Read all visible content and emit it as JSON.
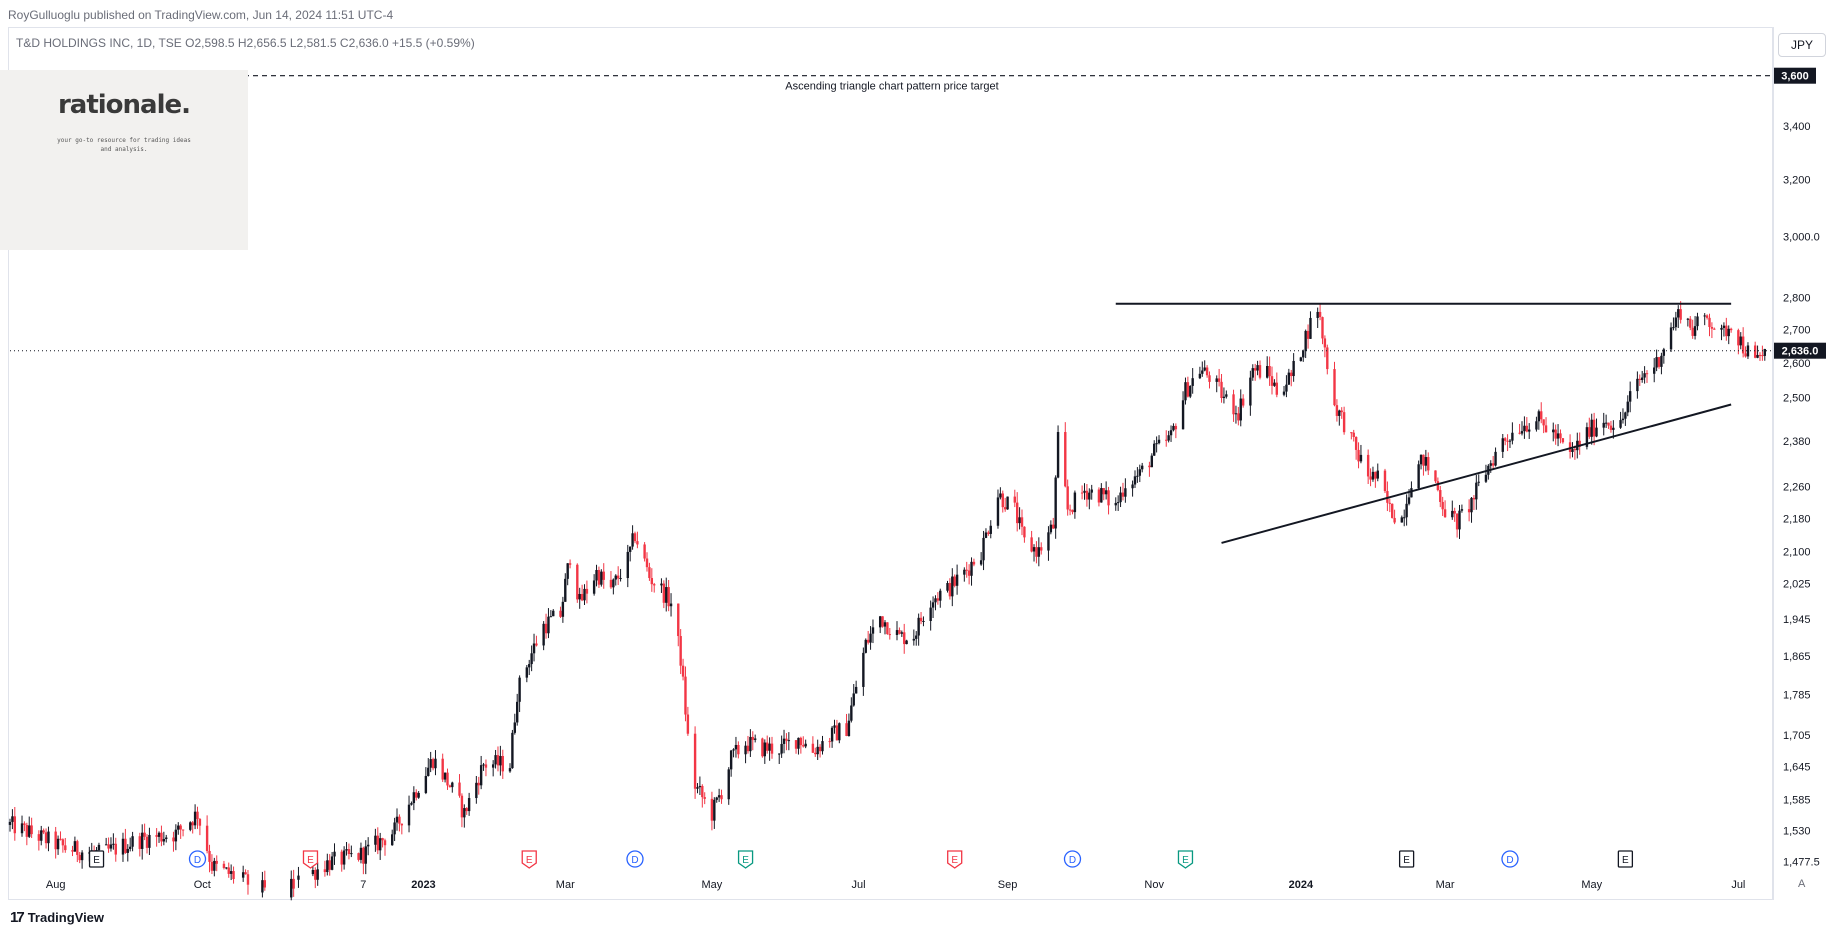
{
  "header": {
    "publisher": "RoyGulluoglu published on TradingView.com, Jun 14, 2024 11:51 UTC-4",
    "symbol_line": "T&D HOLDINGS INC, 1D, TSE  O2,598.5  H2,656.5  L2,581.5  C2,636.0  +15.5 (+0.59%)"
  },
  "currency": "JPY",
  "logo": {
    "title": "rationale.",
    "tagline": "your go-to resource for trading ideas and analysis."
  },
  "footer": {
    "brand": "TradingView",
    "brand_icon": "tradingview-logo-icon",
    "auto_label": "A"
  },
  "colors": {
    "up": "#131722",
    "down": "#f23645",
    "line": "#131722",
    "grid": "#e0e3eb"
  },
  "chart_data": {
    "type": "candlestick",
    "symbol": "T&D HOLDINGS INC",
    "interval": "1D",
    "exchange": "TSE",
    "currency": "JPY",
    "ohlc": {
      "open": 2598.5,
      "high": 2656.5,
      "low": 2581.5,
      "close": 2636.0,
      "change": 15.5,
      "change_pct": "+0.59%"
    },
    "y_scale": "log",
    "ylim": [
      1460,
      3800
    ],
    "xlim": [
      "2022-07-13",
      "2024-07-15"
    ],
    "y_ticks": [
      "3,600",
      "3,400",
      "3,200",
      "3,000.0",
      "2,800",
      "2,700",
      "2,600",
      "2,500",
      "2,380",
      "2,260",
      "2,180",
      "2,100",
      "2,025",
      "1,945",
      "1,865",
      "1,785",
      "1,705",
      "1,645",
      "1,585",
      "1,530",
      "1,477.5"
    ],
    "y_tick_values": [
      3600,
      3400,
      3200,
      3000,
      2800,
      2700,
      2600,
      2500,
      2380,
      2260,
      2180,
      2100,
      2025,
      1945,
      1865,
      1785,
      1705,
      1645,
      1585,
      1530,
      1477.5
    ],
    "x_ticks": [
      {
        "label": "Aug",
        "date": "2022-08-01",
        "bold": false
      },
      {
        "label": "Oct",
        "date": "2022-10-01",
        "bold": false
      },
      {
        "label": "7",
        "date": "2022-12-07",
        "bold": false
      },
      {
        "label": "2023",
        "date": "2023-01-01",
        "bold": true
      },
      {
        "label": "Mar",
        "date": "2023-03-01",
        "bold": false
      },
      {
        "label": "May",
        "date": "2023-05-01",
        "bold": false
      },
      {
        "label": "Jul",
        "date": "2023-07-01",
        "bold": false
      },
      {
        "label": "Sep",
        "date": "2023-09-01",
        "bold": false
      },
      {
        "label": "Nov",
        "date": "2023-11-01",
        "bold": false
      },
      {
        "label": "2024",
        "date": "2024-01-01",
        "bold": true
      },
      {
        "label": "Mar",
        "date": "2024-03-01",
        "bold": false
      },
      {
        "label": "May",
        "date": "2024-05-01",
        "bold": false
      },
      {
        "label": "Jul",
        "date": "2024-07-01",
        "bold": false
      }
    ],
    "last_price": 2636.0,
    "last_price_label": "2,636.0",
    "target_price": 3600,
    "target_label": "3,600",
    "target_annotation": "Ascending triangle chart pattern price target",
    "resistance_line": {
      "from": {
        "date": "2023-10-16",
        "price": 2780
      },
      "to": {
        "date": "2024-06-28",
        "price": 2780
      }
    },
    "support_line": {
      "from": {
        "date": "2023-11-29",
        "price": 2120
      },
      "to": {
        "date": "2024-06-28",
        "price": 2480
      }
    },
    "events": [
      {
        "type": "E",
        "date": "2022-08-18",
        "style": "neutral"
      },
      {
        "type": "D",
        "date": "2022-09-29",
        "style": "dividend"
      },
      {
        "type": "E",
        "date": "2022-11-15",
        "style": "negative"
      },
      {
        "type": "E",
        "date": "2023-02-14",
        "style": "negative"
      },
      {
        "type": "D",
        "date": "2023-03-30",
        "style": "dividend"
      },
      {
        "type": "E",
        "date": "2023-05-15",
        "style": "positive"
      },
      {
        "type": "E",
        "date": "2023-08-10",
        "style": "negative"
      },
      {
        "type": "D",
        "date": "2023-09-28",
        "style": "dividend"
      },
      {
        "type": "E",
        "date": "2023-11-14",
        "style": "positive"
      },
      {
        "type": "E",
        "date": "2024-02-14",
        "style": "neutral"
      },
      {
        "type": "D",
        "date": "2024-03-28",
        "style": "dividend"
      },
      {
        "type": "E",
        "date": "2024-05-15",
        "style": "neutral"
      }
    ],
    "price_path": [
      [
        "2022-07-13",
        1540
      ],
      [
        "2022-07-25",
        1520
      ],
      [
        "2022-08-05",
        1500
      ],
      [
        "2022-08-20",
        1490
      ],
      [
        "2022-09-05",
        1515
      ],
      [
        "2022-09-20",
        1525
      ],
      [
        "2022-09-29",
        1560
      ],
      [
        "2022-10-05",
        1470
      ],
      [
        "2022-11-01",
        1420
      ],
      [
        "2022-11-22",
        1475
      ],
      [
        "2022-12-07",
        1490
      ],
      [
        "2022-12-20",
        1530
      ],
      [
        "2023-01-05",
        1660
      ],
      [
        "2023-01-12",
        1610
      ],
      [
        "2023-01-18",
        1560
      ],
      [
        "2023-01-26",
        1650
      ],
      [
        "2023-02-06",
        1650
      ],
      [
        "2023-02-09",
        1790
      ],
      [
        "2023-02-14",
        1860
      ],
      [
        "2023-02-20",
        1930
      ],
      [
        "2023-02-27",
        1955
      ],
      [
        "2023-03-03",
        2090
      ],
      [
        "2023-03-07",
        1980
      ],
      [
        "2023-03-14",
        2050
      ],
      [
        "2023-03-20",
        2010
      ],
      [
        "2023-03-27",
        2080
      ],
      [
        "2023-03-30",
        2140
      ],
      [
        "2023-04-05",
        2040
      ],
      [
        "2023-04-10",
        2010
      ],
      [
        "2023-04-14",
        1980
      ],
      [
        "2023-04-18",
        1860
      ],
      [
        "2023-04-21",
        1700
      ],
      [
        "2023-04-24",
        1610
      ],
      [
        "2023-05-01",
        1560
      ],
      [
        "2023-05-05",
        1600
      ],
      [
        "2023-05-09",
        1660
      ],
      [
        "2023-05-15",
        1690
      ],
      [
        "2023-05-22",
        1680
      ],
      [
        "2023-05-30",
        1680
      ],
      [
        "2023-06-06",
        1700
      ],
      [
        "2023-06-12",
        1675
      ],
      [
        "2023-06-20",
        1705
      ],
      [
        "2023-06-26",
        1720
      ],
      [
        "2023-06-29",
        1780
      ],
      [
        "2023-07-04",
        1890
      ],
      [
        "2023-07-10",
        1950
      ],
      [
        "2023-07-18",
        1905
      ],
      [
        "2023-07-24",
        1910
      ],
      [
        "2023-07-31",
        1990
      ],
      [
        "2023-08-07",
        2010
      ],
      [
        "2023-08-14",
        2050
      ],
      [
        "2023-08-21",
        2100
      ],
      [
        "2023-08-28",
        2240
      ],
      [
        "2023-09-04",
        2200
      ],
      [
        "2023-09-08",
        2120
      ],
      [
        "2023-09-14",
        2100
      ],
      [
        "2023-09-20",
        2160
      ],
      [
        "2023-09-22",
        2380
      ],
      [
        "2023-09-26",
        2200
      ],
      [
        "2023-10-03",
        2250
      ],
      [
        "2023-10-10",
        2240
      ],
      [
        "2023-10-16",
        2210
      ],
      [
        "2023-10-20",
        2270
      ],
      [
        "2023-10-26",
        2290
      ],
      [
        "2023-11-01",
        2350
      ],
      [
        "2023-11-08",
        2390
      ],
      [
        "2023-11-14",
        2520
      ],
      [
        "2023-11-20",
        2580
      ],
      [
        "2023-11-24",
        2560
      ],
      [
        "2023-11-30",
        2500
      ],
      [
        "2023-12-06",
        2460
      ],
      [
        "2023-12-12",
        2580
      ],
      [
        "2023-12-18",
        2570
      ],
      [
        "2023-12-22",
        2520
      ],
      [
        "2023-12-28",
        2560
      ],
      [
        "2024-01-04",
        2700
      ],
      [
        "2024-01-08",
        2770
      ],
      [
        "2024-01-11",
        2640
      ],
      [
        "2024-01-15",
        2480
      ],
      [
        "2024-01-19",
        2430
      ],
      [
        "2024-01-24",
        2350
      ],
      [
        "2024-01-29",
        2290
      ],
      [
        "2024-02-02",
        2280
      ],
      [
        "2024-02-07",
        2200
      ],
      [
        "2024-02-12",
        2180
      ],
      [
        "2024-02-16",
        2280
      ],
      [
        "2024-02-21",
        2330
      ],
      [
        "2024-02-26",
        2270
      ],
      [
        "2024-03-01",
        2200
      ],
      [
        "2024-03-06",
        2170
      ],
      [
        "2024-03-12",
        2220
      ],
      [
        "2024-03-18",
        2300
      ],
      [
        "2024-03-25",
        2380
      ],
      [
        "2024-04-01",
        2420
      ],
      [
        "2024-04-08",
        2440
      ],
      [
        "2024-04-15",
        2400
      ],
      [
        "2024-04-22",
        2340
      ],
      [
        "2024-04-29",
        2400
      ],
      [
        "2024-05-06",
        2440
      ],
      [
        "2024-05-13",
        2420
      ],
      [
        "2024-05-17",
        2500
      ],
      [
        "2024-05-22",
        2560
      ],
      [
        "2024-05-28",
        2600
      ],
      [
        "2024-06-03",
        2700
      ],
      [
        "2024-06-07",
        2760
      ],
      [
        "2024-06-12",
        2700
      ],
      [
        "2024-06-18",
        2740
      ],
      [
        "2024-06-24",
        2680
      ],
      [
        "2024-06-28",
        2720
      ],
      [
        "2024-07-03",
        2650
      ],
      [
        "2024-07-08",
        2600
      ],
      [
        "2024-07-12",
        2636
      ]
    ]
  }
}
